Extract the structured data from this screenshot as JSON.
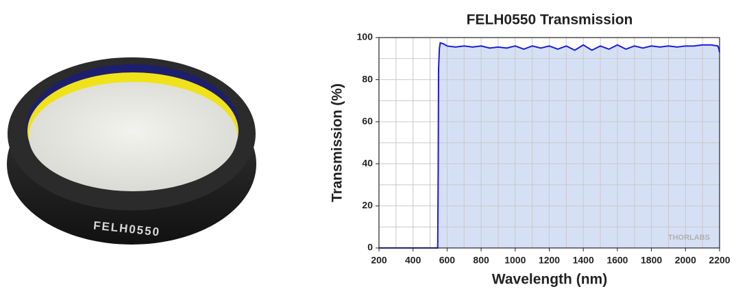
{
  "photo": {
    "engraving": "FELH0550"
  },
  "chart_data": {
    "type": "area",
    "title": "FELH0550 Transmission",
    "x_label": "Wavelength (nm)",
    "y_label": "Transmission (%)",
    "x": [
      200,
      400,
      540,
      545,
      548,
      550,
      555,
      560,
      580,
      600,
      650,
      700,
      750,
      800,
      850,
      900,
      950,
      1000,
      1050,
      1100,
      1150,
      1200,
      1250,
      1300,
      1350,
      1400,
      1450,
      1500,
      1550,
      1600,
      1650,
      1700,
      1750,
      1800,
      1850,
      1900,
      1950,
      2000,
      2050,
      2100,
      2150,
      2190,
      2195,
      2200
    ],
    "values": [
      0,
      0,
      0,
      0,
      40,
      85,
      95,
      97.5,
      97,
      96,
      95.5,
      96,
      95.5,
      96,
      95,
      95.5,
      95,
      96,
      94.5,
      96,
      95,
      96,
      94.5,
      96,
      94,
      96.5,
      94,
      96,
      94.5,
      96.5,
      94.5,
      96,
      95,
      96,
      95.5,
      96,
      95.5,
      96,
      96,
      96.5,
      96.5,
      96,
      95,
      93
    ],
    "color": "#1a1adb",
    "fill": "#d6e0f5",
    "xlim": [
      200,
      2200
    ],
    "ylim": [
      0,
      100
    ],
    "xticks": [
      200,
      400,
      600,
      800,
      1000,
      1200,
      1400,
      1600,
      1800,
      2000,
      2200
    ],
    "yticks": [
      0,
      20,
      40,
      60,
      80,
      100
    ],
    "xminorticks": [
      300,
      500,
      700,
      900,
      1100,
      1300,
      1500,
      1700,
      1900,
      2100
    ],
    "yminorticks": [
      10,
      30,
      50,
      70,
      90
    ],
    "grid": true,
    "watermark": "THORLABS"
  }
}
